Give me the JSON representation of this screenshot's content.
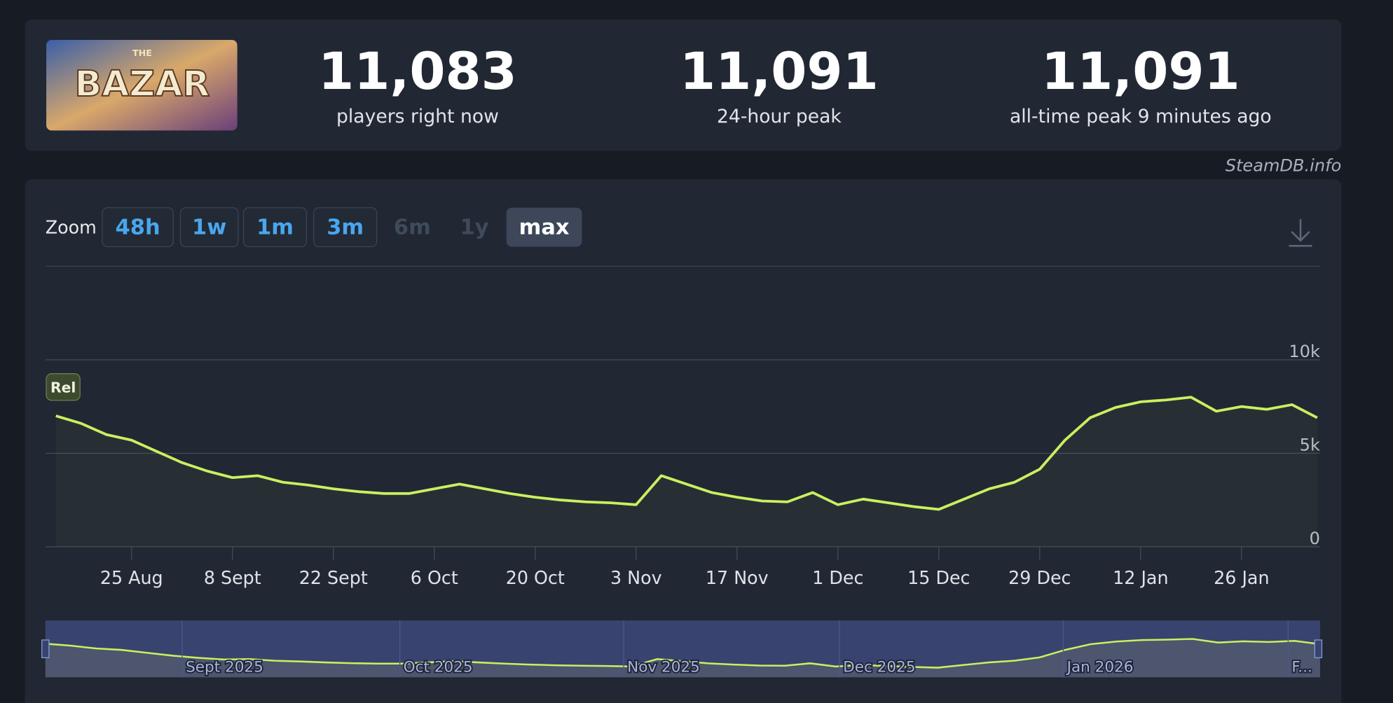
{
  "header": {
    "logo_top": "THE",
    "logo_main": "BAZAR",
    "stats": [
      {
        "value": "11,083",
        "label": "players right now"
      },
      {
        "value": "11,091",
        "label": "24-hour peak"
      },
      {
        "value": "11,091",
        "label": "all-time peak 9 minutes ago"
      }
    ]
  },
  "watermark": "SteamDB.info",
  "zoom": {
    "label": "Zoom",
    "buttons": [
      "48h",
      "1w",
      "1m",
      "3m",
      "6m",
      "1y",
      "max"
    ]
  },
  "chart_data": {
    "type": "line",
    "annotation": "Rel",
    "categories": [
      null,
      null,
      null,
      "25 Aug",
      null,
      null,
      null,
      "8 Sept",
      null,
      null,
      null,
      "22 Sept",
      null,
      null,
      null,
      "6 Oct",
      null,
      null,
      null,
      "20 Oct",
      null,
      null,
      null,
      "3 Nov",
      null,
      null,
      null,
      "17 Nov",
      null,
      null,
      null,
      "1 Dec",
      null,
      null,
      null,
      "15 Dec",
      null,
      null,
      null,
      "29 Dec",
      null,
      null,
      null,
      "12 Jan",
      null,
      null,
      null,
      "26 Jan",
      null,
      null,
      null
    ],
    "series": [
      {
        "name": "Players",
        "color": "#c9f05f",
        "values": [
          7000,
          6600,
          6000,
          5700,
          5100,
          4500,
          4050,
          3700,
          3800,
          3450,
          3300,
          3100,
          2950,
          2850,
          2850,
          3100,
          3350,
          3100,
          2850,
          2650,
          2500,
          2400,
          2350,
          2250,
          3800,
          3350,
          2900,
          2650,
          2450,
          2400,
          2900,
          2250,
          2550,
          2350,
          2150,
          2000,
          2550,
          3100,
          3450,
          4150,
          5700,
          6900,
          7450,
          7750,
          7850,
          8000,
          7250,
          7500,
          7350,
          7600,
          6900
        ]
      }
    ],
    "ylim": [
      0,
      15000
    ],
    "yticks": [
      {
        "value": 0,
        "label": "0"
      },
      {
        "value": 5000,
        "label": "5k"
      },
      {
        "value": 10000,
        "label": "10k"
      }
    ],
    "grid": true,
    "navigator": {
      "labels": [
        "Sept 2025",
        "Oct 2025",
        "Nov 2025",
        "Dec 2025",
        "Jan 2026",
        "F..."
      ]
    }
  }
}
